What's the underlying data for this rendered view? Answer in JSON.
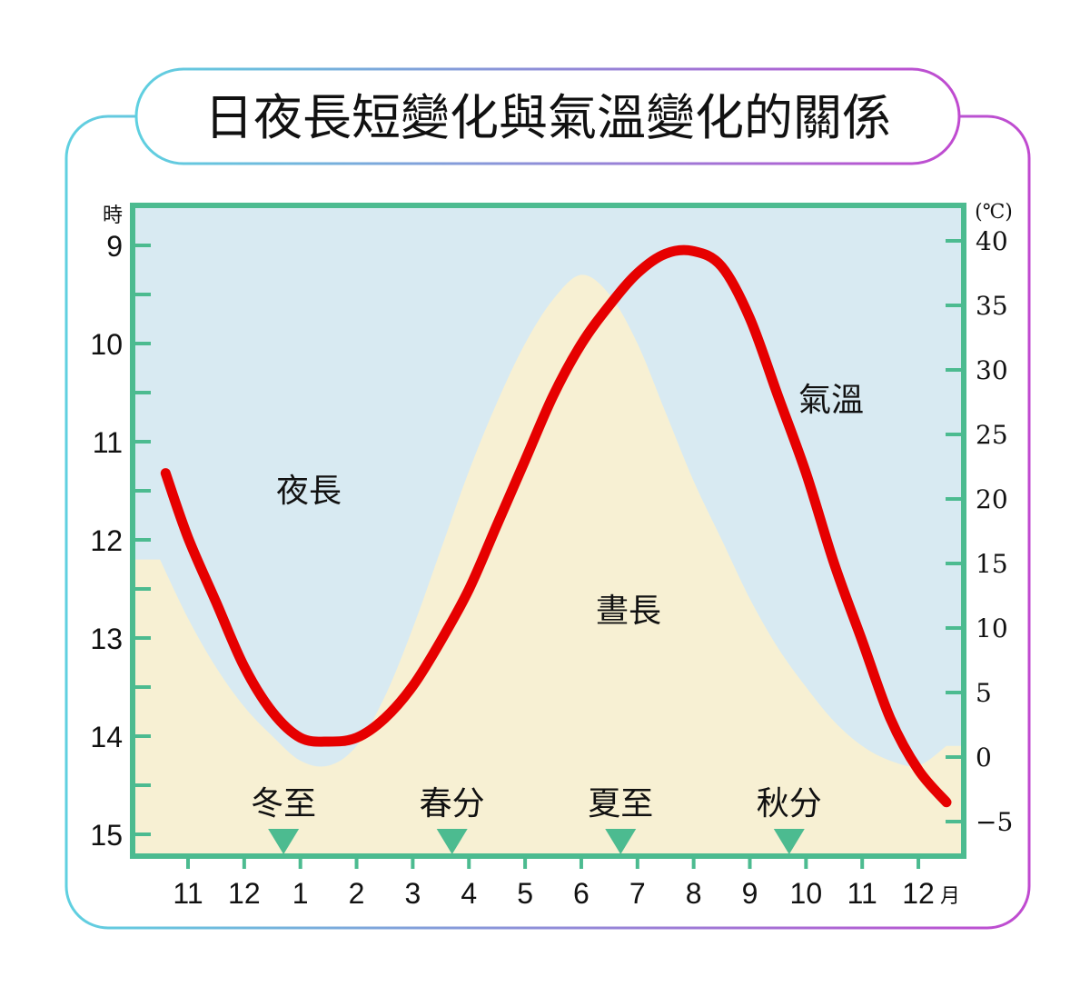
{
  "chart_data": {
    "type": "line",
    "title": "日夜長短變化與氣溫變化的關係",
    "left_axis": {
      "unit": "時",
      "ylim": [
        9,
        15
      ],
      "reversed": true,
      "ticks": [
        "9",
        "10",
        "11",
        "12",
        "13",
        "14",
        "15"
      ]
    },
    "right_axis": {
      "unit": "(℃)",
      "ylim": [
        -5,
        40
      ],
      "ticks": [
        "40",
        "35",
        "30",
        "25",
        "20",
        "15",
        "10",
        "5",
        "0",
        "−5"
      ]
    },
    "x_axis": {
      "unit": "月",
      "ticks": [
        "11",
        "12",
        "1",
        "2",
        "3",
        "4",
        "5",
        "6",
        "7",
        "8",
        "9",
        "10",
        "11",
        "12"
      ]
    },
    "regions": {
      "night_label": "夜長",
      "day_label": "晝長"
    },
    "series": [
      {
        "name": "氣溫",
        "color": "#e60000",
        "axis": "right",
        "x": [
          10.6,
          11.0,
          11.5,
          12.0,
          12.5,
          13.0,
          13.5,
          14.0,
          14.5,
          15.0,
          15.5,
          16.0,
          16.5,
          17.0,
          17.5,
          18.0,
          18.5,
          19.0,
          19.5,
          20.0,
          20.5,
          21.0,
          21.5,
          22.0,
          22.5,
          23.0,
          23.5,
          24.0,
          24.5
        ],
        "y": [
          22,
          17,
          12,
          7,
          3.5,
          1.5,
          1.2,
          1.5,
          3,
          5.5,
          9,
          13,
          18,
          23,
          28,
          32,
          35,
          37.5,
          39,
          39.2,
          38,
          34,
          28,
          22,
          15,
          9,
          3,
          -1,
          -3.5
        ]
      },
      {
        "name": "晝長",
        "color": "#f7f0d3",
        "axis": "left",
        "x": [
          10.5,
          11.0,
          11.5,
          12.0,
          12.5,
          13.0,
          13.5,
          14.0,
          14.5,
          15.0,
          15.5,
          16.0,
          16.5,
          17.0,
          17.5,
          18.0,
          18.5,
          19.0,
          19.5,
          20.0,
          20.5,
          21.0,
          21.5,
          22.0,
          22.5,
          23.0,
          23.5,
          24.0,
          24.5
        ],
        "y": [
          12.2,
          12.8,
          13.3,
          13.7,
          14.0,
          14.25,
          14.3,
          14.1,
          13.6,
          12.9,
          12.1,
          11.3,
          10.6,
          10.0,
          9.55,
          9.3,
          9.5,
          10.0,
          10.7,
          11.4,
          12.0,
          12.6,
          13.1,
          13.5,
          13.85,
          14.1,
          14.25,
          14.3,
          14.1
        ]
      }
    ],
    "annotations": [
      {
        "label": "冬至",
        "x": 12.7
      },
      {
        "label": "春分",
        "x": 15.7
      },
      {
        "label": "夏至",
        "x": 18.7
      },
      {
        "label": "秋分",
        "x": 21.7
      }
    ],
    "grid": false,
    "colors": {
      "frame": "#4cbb90",
      "night": "#d8eaf2",
      "day": "#f7f0d3",
      "marker": "#4cbb90",
      "border_left": "#5fd0e0",
      "border_right": "#c04ad0"
    }
  }
}
